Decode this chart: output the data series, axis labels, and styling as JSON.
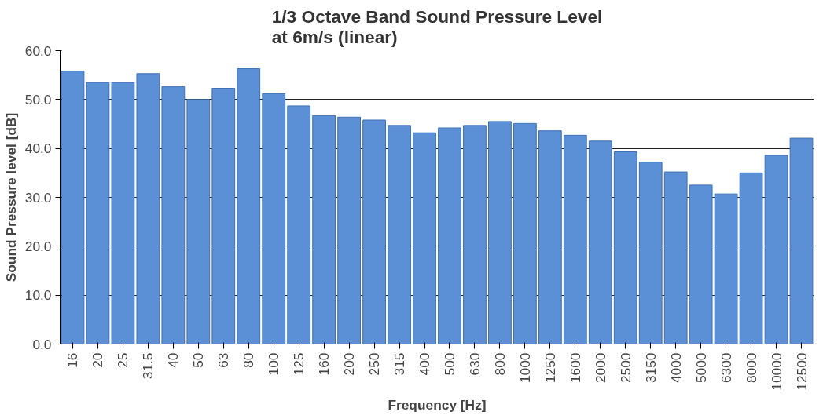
{
  "chart_data": {
    "type": "bar",
    "title": "1/3 Octave Band Sound Pressure Level\nat 6m/s (linear)",
    "xlabel": "Frequency [Hz]",
    "ylabel": "Sound Pressure level [dB]",
    "categories": [
      "16",
      "20",
      "25",
      "31.5",
      "40",
      "50",
      "63",
      "80",
      "100",
      "125",
      "160",
      "200",
      "250",
      "315",
      "400",
      "500",
      "630",
      "800",
      "1000",
      "1250",
      "1600",
      "2000",
      "2500",
      "3150",
      "4000",
      "5000",
      "6300",
      "8000",
      "10000",
      "12500"
    ],
    "values": [
      55.8,
      53.5,
      53.5,
      55.3,
      52.6,
      50.0,
      52.3,
      56.3,
      51.2,
      48.7,
      46.7,
      46.4,
      45.8,
      44.7,
      43.2,
      44.2,
      44.7,
      45.5,
      45.1,
      43.6,
      42.7,
      41.5,
      39.3,
      37.2,
      35.2,
      32.5,
      30.7,
      35.0,
      38.6,
      42.1
    ],
    "color": "#5b8fd6",
    "ylim": [
      0,
      60
    ],
    "yticks": [
      {
        "value": 0,
        "label": "0.0"
      },
      {
        "value": 10,
        "label": "10.0"
      },
      {
        "value": 20,
        "label": "20.0"
      },
      {
        "value": 30,
        "label": "30.0"
      },
      {
        "value": 40,
        "label": "40.0"
      },
      {
        "value": 50,
        "label": "50.0"
      },
      {
        "value": 60,
        "label": "60.0"
      }
    ],
    "grid": "y"
  }
}
